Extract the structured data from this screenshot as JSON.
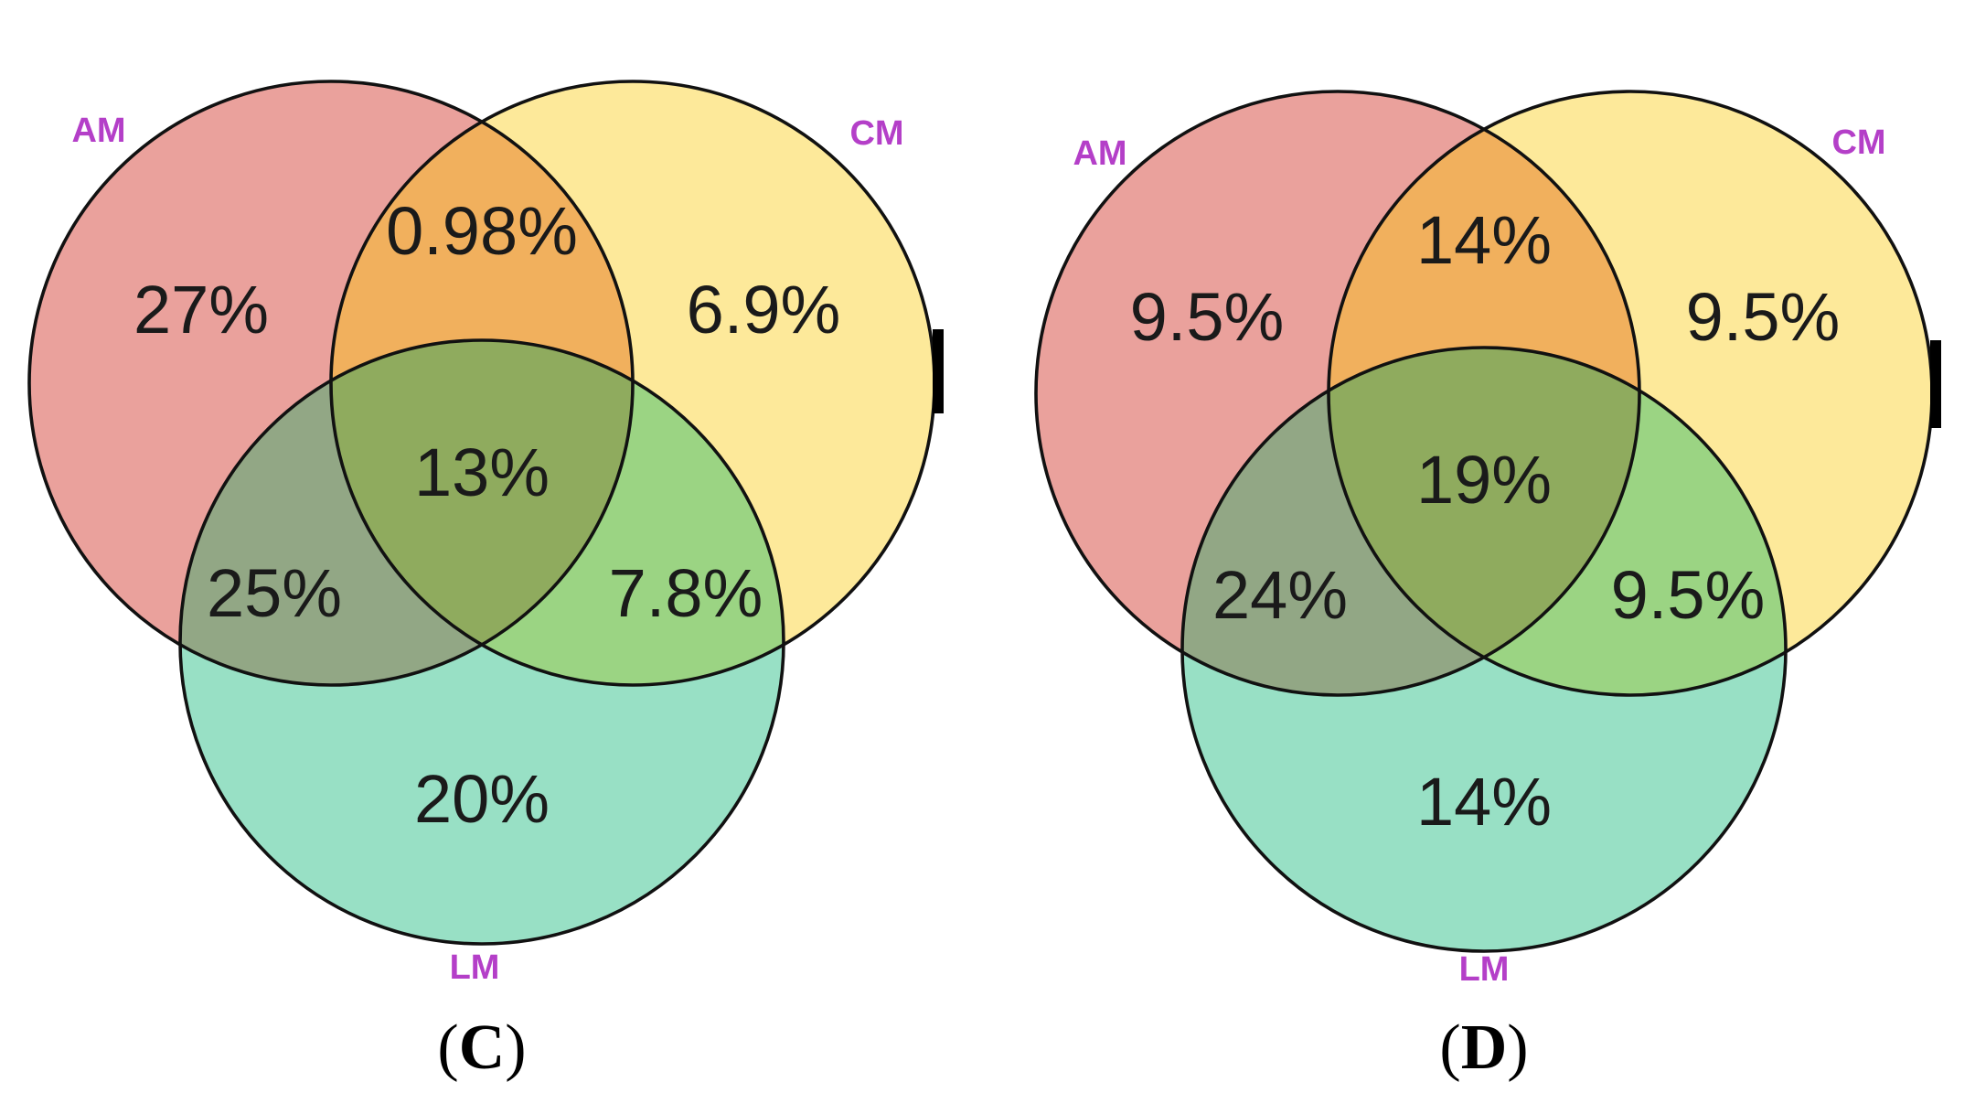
{
  "colors": {
    "am_only": "#eaa19c",
    "cm_only": "#fde99a",
    "lm_only": "#98e0c5",
    "am_cm": "#f1b05d",
    "am_lm": "#92a785",
    "cm_lm": "#9bd483",
    "all_three": "#8fab5e",
    "outline": "#111111",
    "set_label": "#b43fc8"
  },
  "panels": [
    {
      "id": "C",
      "caption": {
        "open": "(",
        "letter": "C",
        "close": ")"
      },
      "sets": {
        "am": "AM",
        "cm": "CM",
        "lm": "LM"
      },
      "regions": {
        "am_only": "27%",
        "cm_only": "6.9%",
        "lm_only": "20%",
        "am_cm": "0.98%",
        "am_lm": "25%",
        "cm_lm": "7.8%",
        "all_three": "13%"
      }
    },
    {
      "id": "D",
      "caption": {
        "open": "(",
        "letter": "D",
        "close": ")"
      },
      "sets": {
        "am": "AM",
        "cm": "CM",
        "lm": "LM"
      },
      "regions": {
        "am_only": "9.5%",
        "cm_only": "9.5%",
        "lm_only": "14%",
        "am_cm": "14%",
        "am_lm": "24%",
        "cm_lm": "9.5%",
        "all_three": "19%"
      }
    }
  ]
}
